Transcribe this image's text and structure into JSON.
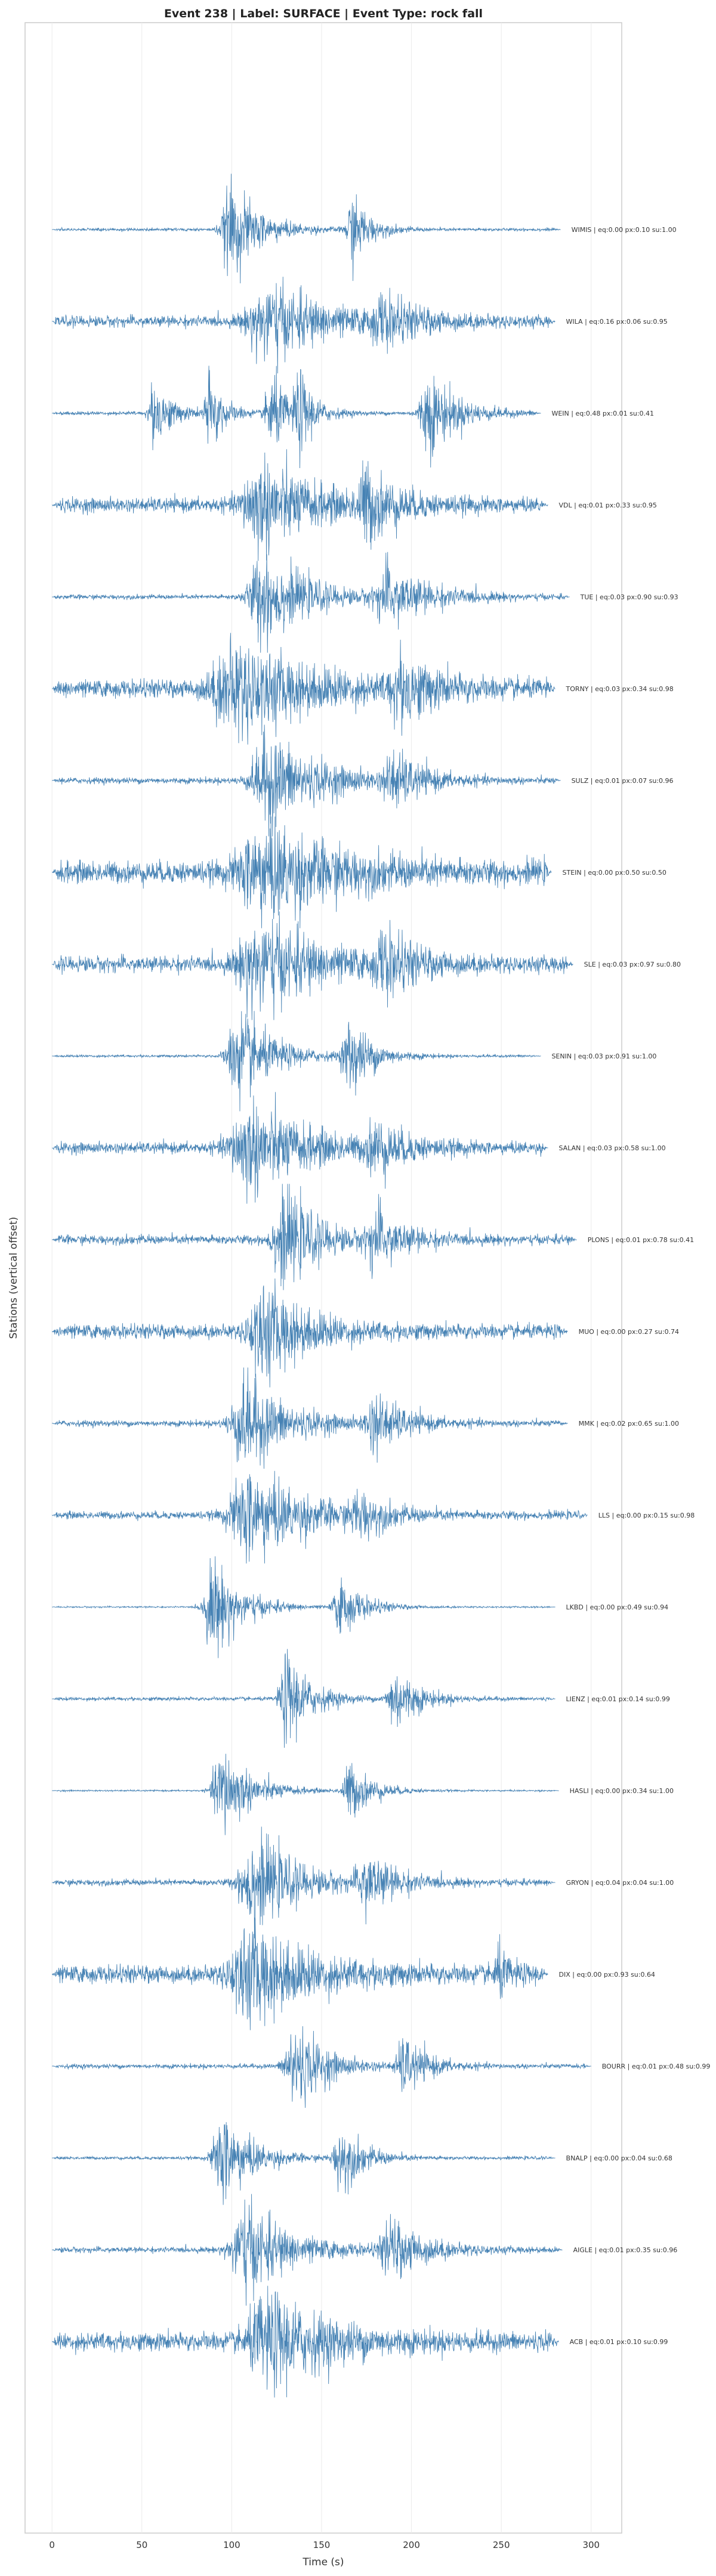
{
  "chart_data": {
    "type": "line",
    "title": "Event 238 | Label: SURFACE | Event Type: rock fall",
    "xlabel": "Time (s)",
    "ylabel": "Stations (vertical offset)",
    "xlim": [
      -15,
      317
    ],
    "xticks": [
      0,
      50,
      100,
      150,
      200,
      250,
      300
    ],
    "grid": true,
    "color": "#4682b4",
    "series": [
      {
        "label": "WIMIS | eq:0.00 px:0.10 su:1.00",
        "trace_end": 283,
        "noise": 0.1,
        "bursts": [
          [
            105,
            10,
            1.0
          ],
          [
            170,
            6,
            0.75
          ]
        ]
      },
      {
        "label": "WILA | eq:0.16 px:0.06 su:0.95",
        "trace_end": 280,
        "noise": 0.35,
        "bursts": [
          [
            130,
            20,
            0.8
          ],
          [
            190,
            12,
            0.45
          ]
        ]
      },
      {
        "label": "WEIN | eq:0.48 px:0.01 su:0.41",
        "trace_end": 272,
        "noise": 0.12,
        "bursts": [
          [
            60,
            6,
            0.7
          ],
          [
            90,
            5,
            0.85
          ],
          [
            125,
            6,
            0.9
          ],
          [
            140,
            5,
            0.8
          ],
          [
            215,
            10,
            0.9
          ]
        ]
      },
      {
        "label": "VDL | eq:0.01 px:0.33 su:0.95",
        "trace_end": 276,
        "noise": 0.45,
        "bursts": [
          [
            125,
            18,
            1.0
          ],
          [
            180,
            10,
            0.7
          ]
        ]
      },
      {
        "label": "TUE | eq:0.03 px:0.90 su:0.93",
        "trace_end": 288,
        "noise": 0.15,
        "bursts": [
          [
            125,
            15,
            1.0
          ],
          [
            195,
            15,
            0.6
          ]
        ]
      },
      {
        "label": "TORNY | eq:0.03 px:0.34 su:0.98",
        "trace_end": 280,
        "noise": 0.55,
        "bursts": [
          [
            115,
            25,
            1.0
          ],
          [
            200,
            12,
            0.6
          ]
        ]
      },
      {
        "label": "SULZ | eq:0.01 px:0.07 su:0.96",
        "trace_end": 283,
        "noise": 0.2,
        "bursts": [
          [
            130,
            18,
            1.0
          ],
          [
            195,
            10,
            0.55
          ]
        ]
      },
      {
        "label": "STEIN | eq:0.00 px:0.50 su:0.50",
        "trace_end": 278,
        "noise": 0.7,
        "bursts": [
          [
            130,
            25,
            1.0
          ]
        ]
      },
      {
        "label": "SLE | eq:0.03 px:0.97 su:0.80",
        "trace_end": 290,
        "noise": 0.5,
        "bursts": [
          [
            125,
            20,
            1.0
          ],
          [
            190,
            10,
            0.6
          ]
        ]
      },
      {
        "label": "SENIN | eq:0.03 px:0.91 su:1.00",
        "trace_end": 272,
        "noise": 0.08,
        "bursts": [
          [
            110,
            12,
            1.0
          ],
          [
            170,
            8,
            0.8
          ]
        ]
      },
      {
        "label": "SALAN | eq:0.03 px:0.58 su:1.00",
        "trace_end": 276,
        "noise": 0.35,
        "bursts": [
          [
            120,
            20,
            1.0
          ],
          [
            185,
            10,
            0.5
          ]
        ]
      },
      {
        "label": "PLONS | eq:0.01 px:0.78 su:0.41",
        "trace_end": 292,
        "noise": 0.3,
        "bursts": [
          [
            135,
            12,
            1.0
          ],
          [
            185,
            10,
            0.6
          ]
        ]
      },
      {
        "label": "MUO | eq:0.00 px:0.27 su:0.74",
        "trace_end": 287,
        "noise": 0.45,
        "bursts": [
          [
            125,
            15,
            1.0
          ]
        ]
      },
      {
        "label": "MMK | eq:0.02 px:0.65 su:1.00",
        "trace_end": 287,
        "noise": 0.2,
        "bursts": [
          [
            115,
            15,
            1.0
          ],
          [
            185,
            10,
            0.6
          ]
        ]
      },
      {
        "label": "LLS | eq:0.00 px:0.15 su:0.98",
        "trace_end": 298,
        "noise": 0.25,
        "bursts": [
          [
            120,
            20,
            1.0
          ],
          [
            175,
            8,
            0.4
          ]
        ]
      },
      {
        "label": "LKBD | eq:0.00 px:0.49 su:0.94",
        "trace_end": 280,
        "noise": 0.05,
        "bursts": [
          [
            95,
            10,
            1.0
          ],
          [
            165,
            8,
            0.6
          ]
        ]
      },
      {
        "label": "LIENZ | eq:0.01 px:0.14 su:0.99",
        "trace_end": 280,
        "noise": 0.12,
        "bursts": [
          [
            135,
            8,
            1.0
          ],
          [
            195,
            8,
            0.7
          ]
        ]
      },
      {
        "label": "HASLI | eq:0.00 px:0.34 su:1.00",
        "trace_end": 282,
        "noise": 0.05,
        "bursts": [
          [
            100,
            10,
            1.0
          ],
          [
            170,
            8,
            0.6
          ]
        ]
      },
      {
        "label": "GRYON | eq:0.04 px:0.04 su:1.00",
        "trace_end": 280,
        "noise": 0.2,
        "bursts": [
          [
            120,
            15,
            1.0
          ],
          [
            180,
            10,
            0.6
          ]
        ]
      },
      {
        "label": "DIX | eq:0.00 px:0.93 su:0.64",
        "trace_end": 276,
        "noise": 0.55,
        "bursts": [
          [
            120,
            20,
            1.0
          ],
          [
            250,
            4,
            0.5
          ]
        ]
      },
      {
        "label": "BOURR | eq:0.01 px:0.48 su:0.99",
        "trace_end": 300,
        "noise": 0.15,
        "bursts": [
          [
            140,
            10,
            1.0
          ],
          [
            200,
            8,
            0.6
          ]
        ]
      },
      {
        "label": "BNALP | eq:0.00 px:0.04 su:0.68",
        "trace_end": 280,
        "noise": 0.1,
        "bursts": [
          [
            100,
            10,
            1.0
          ],
          [
            165,
            8,
            0.7
          ]
        ]
      },
      {
        "label": "AIGLE | eq:0.01 px:0.35 su:0.96",
        "trace_end": 284,
        "noise": 0.18,
        "bursts": [
          [
            115,
            15,
            1.0
          ],
          [
            195,
            12,
            0.6
          ]
        ]
      },
      {
        "label": "ACB | eq:0.01 px:0.10 su:0.99",
        "trace_end": 282,
        "noise": 0.6,
        "bursts": [
          [
            130,
            20,
            1.0
          ]
        ]
      }
    ]
  }
}
